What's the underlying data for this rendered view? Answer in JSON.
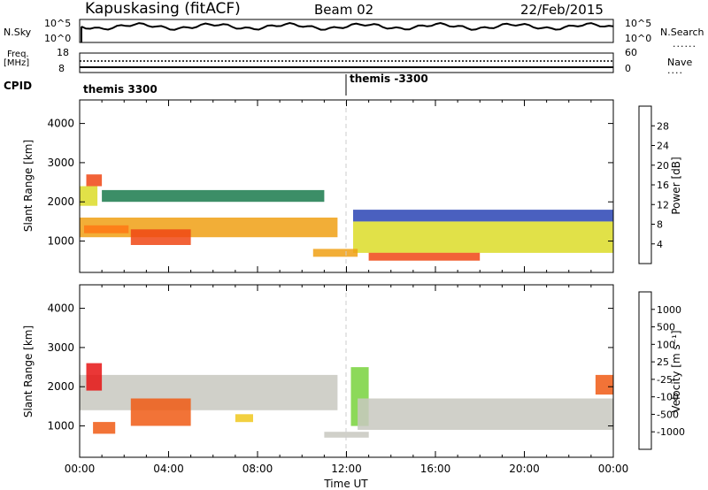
{
  "header": {
    "station": "Kapuskasing (fitACF)",
    "beam": "Beam 02",
    "date": "22/Feb/2015"
  },
  "noise_panel": {
    "left_label": "N.Sky",
    "right_label": "N.Search",
    "left_ticks": [
      "10^5",
      "10^0"
    ],
    "right_ticks": [
      "10^5",
      "10^0"
    ]
  },
  "freq_panel": {
    "left_label_1": "Freq.",
    "left_label_2": "[MHz]",
    "right_label": "Nave",
    "left_ticks": [
      "18",
      "8"
    ],
    "right_ticks": [
      "60",
      "0"
    ]
  },
  "cpid": {
    "label": "CPID",
    "segments": [
      {
        "start_hour": 0,
        "name": "themis 3300"
      },
      {
        "start_hour": 12,
        "name": "themis -3300"
      }
    ]
  },
  "chart_data": [
    {
      "type": "heatmap",
      "title": "",
      "ylabel": "Slant Range [km]",
      "xlabel": "",
      "x_range_hours": [
        0,
        24
      ],
      "ylim": [
        200,
        4600
      ],
      "yticks": [
        1000,
        2000,
        3000,
        4000
      ],
      "colorbar": {
        "label": "Power [dB]",
        "ticks": [
          "4",
          "8",
          "12",
          "16",
          "20",
          "24",
          "28"
        ],
        "colors": [
          "#0f1ee6",
          "#2a44b4",
          "#1a7a4c",
          "#3c9a3c",
          "#8cc83c",
          "#dcdc28",
          "#f0a014",
          "#ff7814",
          "#f04614",
          "#dc1414"
        ]
      },
      "bands": [
        {
          "t0": 0.0,
          "t1": 11.6,
          "r0": 1100,
          "r1": 1600,
          "level": 6
        },
        {
          "t0": 0.0,
          "t1": 0.8,
          "r0": 1900,
          "r1": 2400,
          "level": 5
        },
        {
          "t0": 0.3,
          "t1": 1.0,
          "r0": 2400,
          "r1": 2700,
          "level": 8
        },
        {
          "t0": 1.0,
          "t1": 11.0,
          "r0": 2000,
          "r1": 2300,
          "level": 2
        },
        {
          "t0": 2.3,
          "t1": 5.0,
          "r0": 900,
          "r1": 1300,
          "level": 8
        },
        {
          "t0": 0.2,
          "t1": 2.2,
          "r0": 1200,
          "r1": 1400,
          "level": 7
        },
        {
          "t0": 12.3,
          "t1": 24.0,
          "r0": 700,
          "r1": 1500,
          "level": 5
        },
        {
          "t0": 12.3,
          "t1": 24.0,
          "r0": 1500,
          "r1": 1800,
          "level": 1
        },
        {
          "t0": 13.0,
          "t1": 18.0,
          "r0": 500,
          "r1": 700,
          "level": 8
        },
        {
          "t0": 10.5,
          "t1": 12.5,
          "r0": 600,
          "r1": 800,
          "level": 6
        }
      ]
    },
    {
      "type": "heatmap",
      "title": "",
      "ylabel": "Slant Range [km]",
      "xlabel": "Time UT",
      "x_range_hours": [
        0,
        24
      ],
      "ylim": [
        200,
        4600
      ],
      "yticks": [
        1000,
        2000,
        3000,
        4000
      ],
      "xticks": [
        "00:00",
        "04:00",
        "08:00",
        "12:00",
        "16:00",
        "20:00",
        "00:00"
      ],
      "colorbar": {
        "label": "Velocity [m s⁻¹]",
        "ticks": [
          "1000",
          "500",
          "100",
          "25",
          "-25",
          "-100",
          "-500",
          "-1000"
        ],
        "colors": [
          "#1428d2",
          "#286450",
          "#3ca03c",
          "#78d23c",
          "#c8c8c0",
          "#c8c8c0",
          "#f0c81e",
          "#f0961e",
          "#f05a14",
          "#e61414"
        ]
      },
      "bands": [
        {
          "t0": 0.0,
          "t1": 11.6,
          "r0": 1400,
          "r1": 2300,
          "level": 4
        },
        {
          "t0": 0.3,
          "t1": 1.0,
          "r0": 1900,
          "r1": 2600,
          "level": 9
        },
        {
          "t0": 0.6,
          "t1": 1.6,
          "r0": 800,
          "r1": 1100,
          "level": 8
        },
        {
          "t0": 2.3,
          "t1": 5.0,
          "r0": 1000,
          "r1": 1700,
          "level": 8
        },
        {
          "t0": 7.0,
          "t1": 7.8,
          "r0": 1100,
          "r1": 1300,
          "level": 6
        },
        {
          "t0": 12.2,
          "t1": 13.0,
          "r0": 1000,
          "r1": 2500,
          "level": 3
        },
        {
          "t0": 12.5,
          "t1": 24.0,
          "r0": 900,
          "r1": 1700,
          "level": 4
        },
        {
          "t0": 23.2,
          "t1": 24.0,
          "r0": 1800,
          "r1": 2300,
          "level": 8
        },
        {
          "t0": 11.0,
          "t1": 13.0,
          "r0": 700,
          "r1": 850,
          "level": 4
        }
      ]
    }
  ]
}
